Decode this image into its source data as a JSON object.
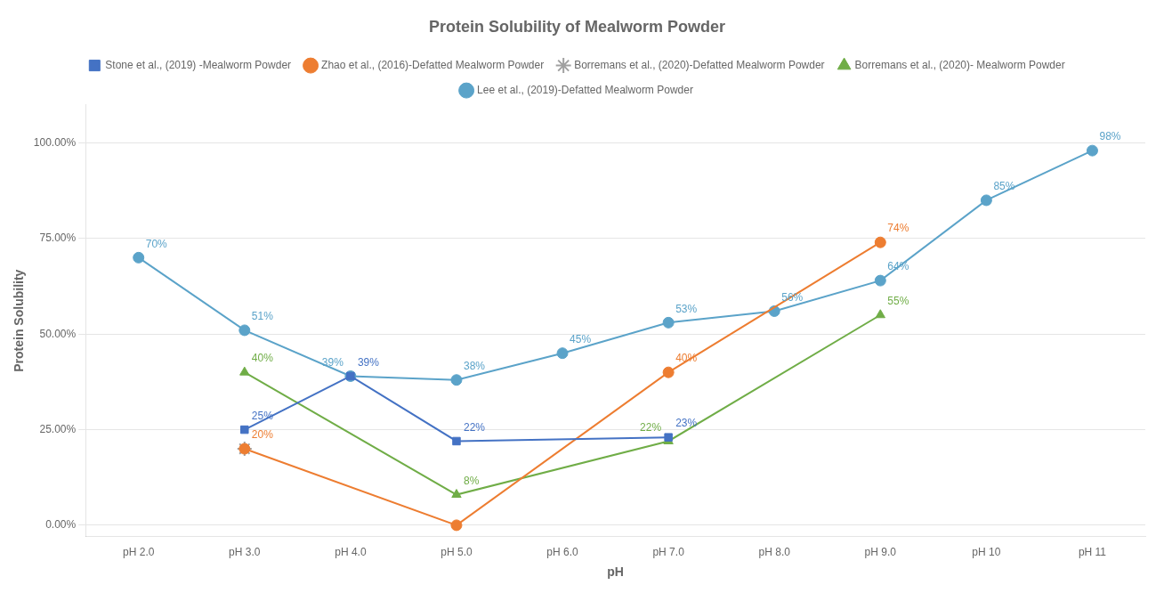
{
  "chart_data": {
    "type": "line",
    "title": "Protein Solubility of Mealworm Powder",
    "xlabel": "pH",
    "ylabel": "Protein Solubility",
    "x": [
      2.0,
      3.0,
      4.0,
      5.0,
      6.0,
      7.0,
      8.0,
      9.0,
      10.0,
      11.0
    ],
    "xlim": [
      1.5,
      11.5
    ],
    "xticks": [
      {
        "value": 2.0,
        "label": "pH 2.0"
      },
      {
        "value": 3.0,
        "label": "pH 3.0"
      },
      {
        "value": 4.0,
        "label": "pH 4.0"
      },
      {
        "value": 5.0,
        "label": "pH 5.0"
      },
      {
        "value": 6.0,
        "label": "pH 6.0"
      },
      {
        "value": 7.0,
        "label": "pH 7.0"
      },
      {
        "value": 8.0,
        "label": "pH 8.0"
      },
      {
        "value": 9.0,
        "label": "pH 9.0"
      },
      {
        "value": 10.0,
        "label": "pH 10"
      },
      {
        "value": 11.0,
        "label": "pH 11"
      }
    ],
    "ylim": [
      -0.03,
      1.1
    ],
    "yticks": [
      {
        "value": 0.0,
        "label": "0.00%"
      },
      {
        "value": 0.25,
        "label": "25.00%"
      },
      {
        "value": 0.5,
        "label": "50.00%"
      },
      {
        "value": 0.75,
        "label": "75.00%"
      },
      {
        "value": 1.0,
        "label": "100.00%"
      }
    ],
    "grid": "y",
    "legend": "top",
    "data_labels": true,
    "series": [
      {
        "name": "Stone et al., (2019) -Mealworm Powder",
        "color": "#4472C4",
        "marker": "square",
        "values": [
          null,
          0.25,
          0.39,
          0.22,
          null,
          0.23,
          null,
          null,
          null,
          null
        ],
        "value_labels": [
          null,
          "25%",
          "39%",
          "22%",
          null,
          "23%",
          null,
          null,
          null,
          null
        ]
      },
      {
        "name": "Zhao et al., (2016)-Defatted Mealworm Powder",
        "color": "#ED7D31",
        "marker": "circle",
        "values": [
          null,
          0.2,
          null,
          0.0,
          null,
          0.4,
          null,
          0.74,
          null,
          null
        ],
        "value_labels": [
          null,
          "20%",
          null,
          null,
          null,
          "40%",
          null,
          "74%",
          null,
          null
        ]
      },
      {
        "name": "Borremans et al., (2020)-Defatted Mealworm Powder",
        "color": "#A0A0A0",
        "marker": "star",
        "values": [
          null,
          0.2,
          null,
          null,
          null,
          null,
          null,
          null,
          null,
          null
        ]
      },
      {
        "name": "Borremans et al., (2020)- Mealworm Powder",
        "color": "#70AD47",
        "marker": "triangle",
        "values": [
          null,
          0.4,
          null,
          0.08,
          null,
          0.22,
          null,
          0.55,
          null,
          null
        ],
        "value_labels": [
          null,
          "40%",
          null,
          "8%",
          null,
          "22%",
          null,
          "55%",
          null,
          null
        ]
      },
      {
        "name": "Lee et al., (2019)-Defatted Mealworm Powder",
        "color": "#5BA3C9",
        "marker": "circle",
        "values": [
          0.7,
          0.51,
          0.39,
          0.38,
          0.45,
          0.53,
          0.56,
          0.64,
          0.85,
          0.98
        ],
        "value_labels": [
          "70%",
          "51%",
          "39%",
          "38%",
          "45%",
          "53%",
          "56%",
          "64%",
          "85%",
          "98%"
        ]
      }
    ]
  }
}
